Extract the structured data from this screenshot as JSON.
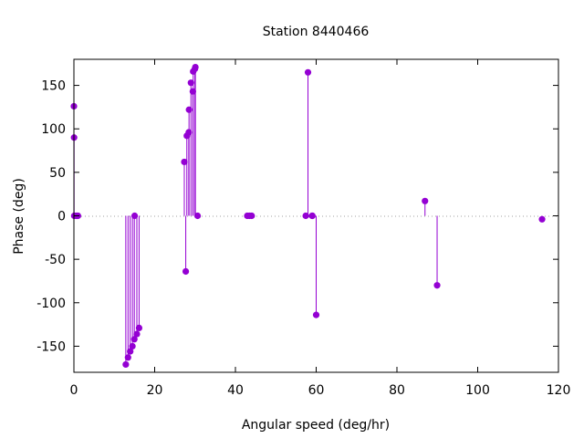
{
  "chart_data": {
    "type": "scatter",
    "style": "impulses with points",
    "title": "Station 8440466",
    "xlabel": "Angular speed (deg/hr)",
    "ylabel": "Phase (deg)",
    "xlim": [
      0,
      120
    ],
    "ylim": [
      -180,
      180
    ],
    "xticks": [
      0,
      20,
      40,
      60,
      80,
      100,
      120
    ],
    "yticks": [
      -150,
      -100,
      -50,
      0,
      50,
      100,
      150
    ],
    "zero_line": "dotted",
    "grid": false,
    "legend": "none",
    "series": [
      {
        "color": "#9400d3",
        "points": [
          {
            "x": 0.0,
            "y": 126
          },
          {
            "x": 0.04,
            "y": 90
          },
          {
            "x": 0.08,
            "y": 0
          },
          {
            "x": 0.5,
            "y": 0
          },
          {
            "x": 0.8,
            "y": 0
          },
          {
            "x": 1.0,
            "y": 0
          },
          {
            "x": 12.85,
            "y": -171
          },
          {
            "x": 13.4,
            "y": -163
          },
          {
            "x": 13.94,
            "y": -156
          },
          {
            "x": 14.49,
            "y": -150
          },
          {
            "x": 14.96,
            "y": -142
          },
          {
            "x": 15.04,
            "y": 0
          },
          {
            "x": 15.59,
            "y": -136
          },
          {
            "x": 16.14,
            "y": -129
          },
          {
            "x": 27.34,
            "y": 62
          },
          {
            "x": 27.7,
            "y": -64
          },
          {
            "x": 27.97,
            "y": 92
          },
          {
            "x": 28.44,
            "y": 96
          },
          {
            "x": 28.51,
            "y": 122
          },
          {
            "x": 28.99,
            "y": 153
          },
          {
            "x": 29.46,
            "y": 143
          },
          {
            "x": 29.54,
            "y": 166
          },
          {
            "x": 29.96,
            "y": 169
          },
          {
            "x": 30.08,
            "y": 171
          },
          {
            "x": 30.63,
            "y": 0
          },
          {
            "x": 42.93,
            "y": 0
          },
          {
            "x": 43.48,
            "y": 0
          },
          {
            "x": 44.03,
            "y": 0
          },
          {
            "x": 57.42,
            "y": 0
          },
          {
            "x": 57.97,
            "y": 165
          },
          {
            "x": 58.98,
            "y": 0
          },
          {
            "x": 59.07,
            "y": 0
          },
          {
            "x": 60.0,
            "y": -114
          },
          {
            "x": 86.95,
            "y": 17
          },
          {
            "x": 89.95,
            "y": -80
          },
          {
            "x": 115.94,
            "y": -4
          }
        ]
      }
    ]
  }
}
